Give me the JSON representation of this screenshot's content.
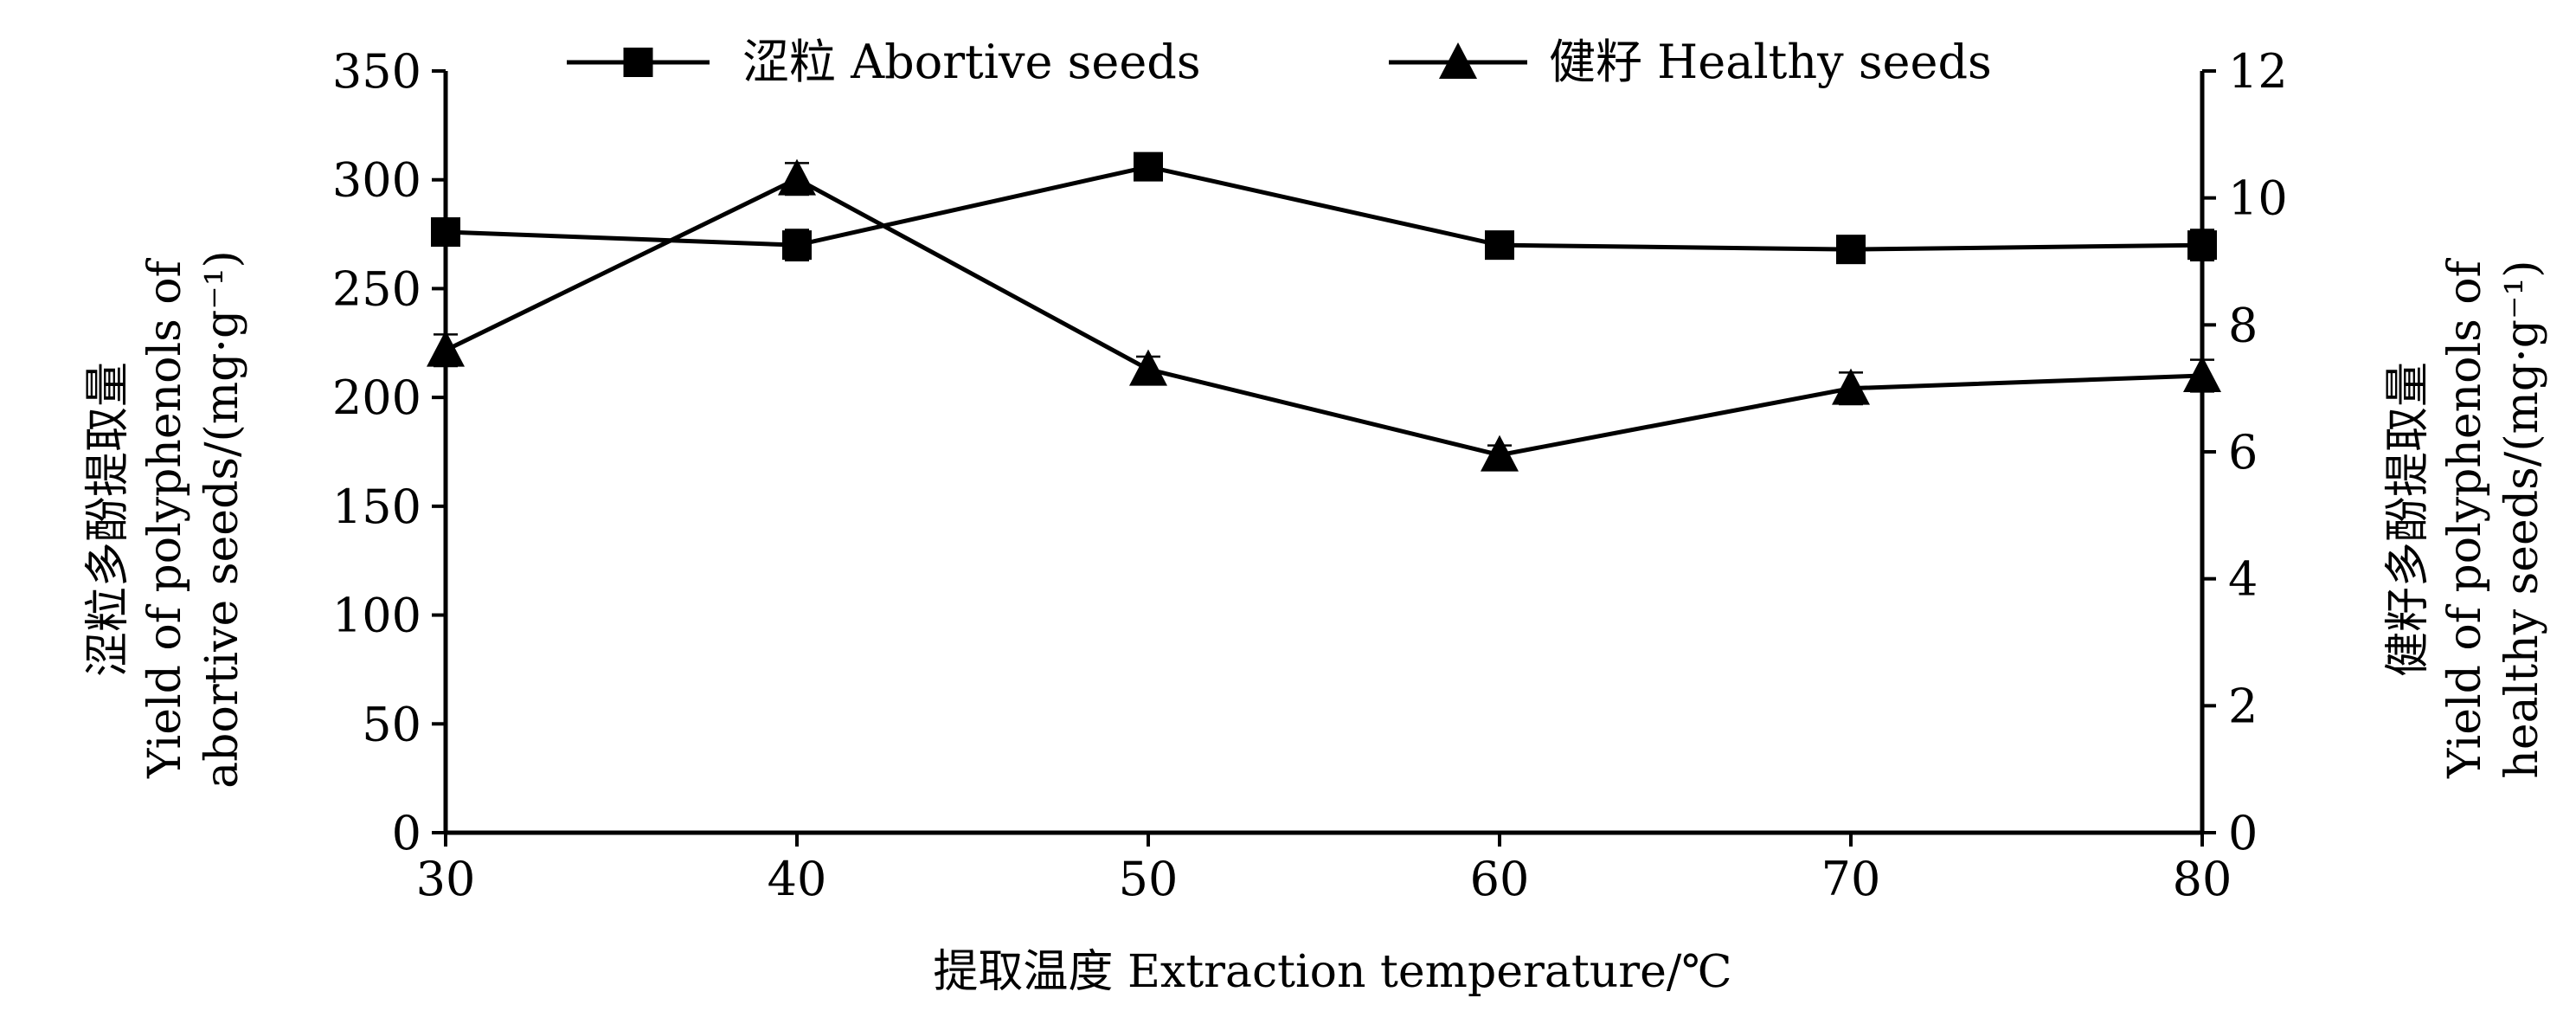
{
  "chart_data": {
    "type": "line",
    "xlabel": "提取温度 Extraction temperature/℃",
    "ylabel_left": [
      "涩粒多酚提取量",
      "Yield of polyphenols of",
      "abortive seeds/(mg·g⁻¹)"
    ],
    "ylabel_right": [
      "健籽多酚提取量",
      "Yield of polyphenols of",
      "healthy seeds/(mg·g⁻¹)"
    ],
    "x": [
      30,
      40,
      50,
      60,
      70,
      80
    ],
    "xlim": [
      30,
      80
    ],
    "x_ticks": [
      30,
      40,
      50,
      60,
      70,
      80
    ],
    "ylim_left": [
      0,
      350
    ],
    "y_ticks_left": [
      0,
      50,
      100,
      150,
      200,
      250,
      300,
      350
    ],
    "ylim_right": [
      0,
      12
    ],
    "y_ticks_right": [
      0,
      2,
      4,
      6,
      8,
      10,
      12
    ],
    "grid": false,
    "legend_position": "top",
    "series": [
      {
        "name": "涩粒 Abortive seeds",
        "axis": "left",
        "marker": "square",
        "values": [
          276,
          270,
          306,
          270,
          268,
          270
        ],
        "errors": [
          5,
          7,
          6,
          4,
          6,
          7
        ]
      },
      {
        "name": "健籽 Healthy seeds",
        "axis": "right",
        "marker": "triangle",
        "values": [
          7.6,
          10.3,
          7.3,
          5.95,
          7.0,
          7.2
        ],
        "errors": [
          0.25,
          0.25,
          0.2,
          0.15,
          0.25,
          0.25
        ]
      }
    ]
  }
}
